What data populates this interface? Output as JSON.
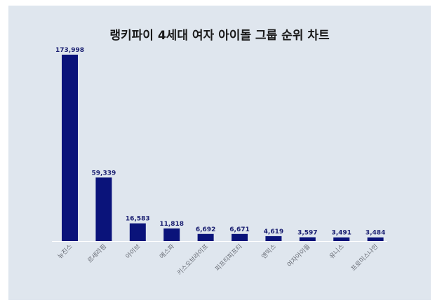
{
  "chart_data": {
    "type": "bar",
    "title": "랭키파이 4세대 여자 아이돌 그룹 순위 차트",
    "categories": [
      "뉴진스",
      "르세라핌",
      "아이브",
      "에스파",
      "키스오브라이프",
      "피프티피프티",
      "엔믹스",
      "여자아이들",
      "유니스",
      "프로미스나인"
    ],
    "values": [
      173998,
      59339,
      16583,
      11818,
      6692,
      6671,
      4619,
      3597,
      3491,
      3484
    ],
    "value_labels": [
      "173,998",
      "59,339",
      "16,583",
      "11,818",
      "6,692",
      "6,671",
      "4,619",
      "3,597",
      "3,491",
      "3,484"
    ],
    "bar_color": "#0a137a",
    "background": "#dfe6ee",
    "grid": false,
    "ylim": [
      0,
      173998
    ]
  }
}
